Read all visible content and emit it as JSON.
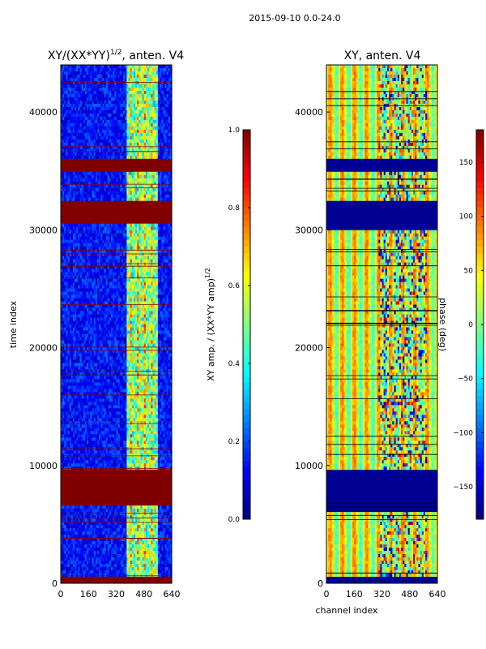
{
  "chart_data": [
    {
      "type": "heatmap",
      "suptitle": "2015-09-10 0.0-24.0",
      "panels": [
        {
          "id": "amp",
          "title": "XY/(XX*YY)^1/2, anten. V4",
          "title_main": "XY/(XX*YY)",
          "title_sup": "1/2",
          "title_tail": ", anten. V4",
          "xlabel": "",
          "ylabel": "time index",
          "xlim": [
            0,
            640
          ],
          "ylim": [
            0,
            44000
          ],
          "xticks": [
            0,
            160,
            320,
            480,
            640
          ],
          "yticks": [
            0,
            10000,
            20000,
            30000,
            40000
          ],
          "band_rows": [
            {
              "start": 0,
              "end": 600,
              "level": 1.0
            },
            {
              "start": 6500,
              "end": 9500,
              "level": 1.0
            },
            {
              "start": 30500,
              "end": 32500,
              "level": 1.0
            },
            {
              "start": 35000,
              "end": 36000,
              "level": 1.0
            }
          ],
          "colorbar": {
            "label": "XY amp. / (XX*YY amp)^1/2",
            "label_main": "XY amp. / (XX*YY amp)",
            "label_sup": "1/2",
            "range": [
              0.0,
              1.0
            ],
            "ticks": [
              0.0,
              0.2,
              0.4,
              0.6,
              0.8,
              1.0
            ],
            "tick_labels": [
              "0.0",
              "0.2",
              "0.4",
              "0.6",
              "0.8",
              "1.0"
            ]
          }
        },
        {
          "id": "phase",
          "title": "XY, anten. V4",
          "xlabel": "channel index",
          "ylabel": "",
          "xlim": [
            0,
            640
          ],
          "ylim": [
            0,
            44000
          ],
          "xticks": [
            0,
            160,
            320,
            480,
            640
          ],
          "yticks": [
            0,
            10000,
            20000,
            30000,
            40000
          ],
          "band_rows": [
            {
              "start": 0,
              "end": 600,
              "level": -180
            },
            {
              "start": 6000,
              "end": 9500,
              "level": -180
            },
            {
              "start": 30000,
              "end": 32500,
              "level": -180
            },
            {
              "start": 35000,
              "end": 36000,
              "level": -180
            }
          ],
          "colorbar": {
            "label": "phase (deg)",
            "range": [
              -180,
              180
            ],
            "ticks": [
              -150,
              -100,
              -50,
              0,
              50,
              100,
              150
            ],
            "tick_labels": [
              "−150",
              "−100",
              "−50",
              "0",
              "50",
              "100",
              "150"
            ]
          }
        }
      ]
    }
  ]
}
